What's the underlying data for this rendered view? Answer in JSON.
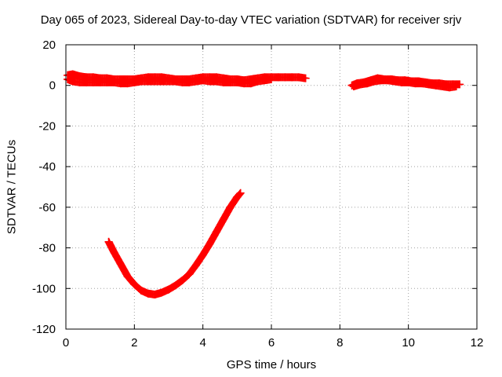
{
  "chart_data": {
    "type": "line",
    "title": "Day 065 of 2023, Sidereal Day-to-day VTEC variation (SDTVAR) for receiver srjv",
    "xlabel": "GPS time / hours",
    "ylabel": "SDTVAR / TECUs",
    "xlim": [
      0,
      12
    ],
    "ylim": [
      -120,
      20
    ],
    "xticks": [
      0,
      2,
      4,
      6,
      8,
      10,
      12
    ],
    "yticks": [
      20,
      0,
      -20,
      -40,
      -60,
      -80,
      -100,
      -120
    ],
    "grid": true,
    "legend": "none",
    "series": [
      {
        "color": "#ff0000",
        "marker": "plus",
        "x": [
          0.05,
          0.2,
          0.4,
          0.6,
          0.8,
          1.0,
          1.2,
          1.4,
          1.6,
          1.8,
          2.0,
          2.2,
          2.4,
          2.6,
          2.8,
          3.0,
          3.2,
          3.4,
          3.6,
          3.8,
          4.0,
          4.2,
          4.4,
          4.6,
          4.8,
          5.0,
          5.2,
          5.4,
          5.6,
          5.8,
          6.0,
          6.2,
          6.4,
          6.6,
          6.8,
          7.0
        ],
        "y": [
          5,
          5.5,
          4.5,
          4,
          4,
          3.5,
          3.5,
          3,
          3,
          3,
          3,
          3.5,
          4,
          4,
          4,
          3.5,
          3,
          3,
          3,
          3.5,
          4,
          4,
          4,
          3.5,
          3,
          3,
          2.5,
          3,
          3.5,
          4,
          4,
          4,
          4,
          4,
          4,
          3.5
        ]
      },
      {
        "color": "#ff0000",
        "marker": "plus",
        "x": [
          0.05,
          0.2,
          0.4,
          0.6,
          0.8,
          1.0,
          1.2,
          1.4,
          1.6,
          1.8,
          2.0,
          2.2,
          2.4,
          2.6,
          2.8,
          3.0,
          3.2,
          3.4,
          3.6,
          3.8,
          4.0,
          4.2,
          4.4,
          4.6,
          4.8,
          5.0,
          5.2,
          5.4,
          5.6,
          5.8,
          6.0
        ],
        "y": [
          3,
          2,
          1.5,
          1.5,
          1.5,
          1.5,
          1.5,
          1.5,
          1,
          1,
          1.5,
          2,
          2,
          2,
          2,
          2,
          2,
          1.5,
          1.5,
          2,
          2.5,
          2,
          2,
          1.5,
          1.5,
          1.5,
          1,
          1,
          2,
          2.5,
          3
        ]
      },
      {
        "color": "#ff0000",
        "marker": "plus",
        "x": [
          8.35,
          8.5,
          8.7,
          8.9,
          9.1,
          9.3,
          9.5,
          9.7,
          9.9,
          10.1,
          10.3,
          10.5,
          10.7,
          10.9,
          11.1,
          11.3,
          11.5
        ],
        "y": [
          0,
          1,
          1.5,
          2.5,
          3.5,
          3,
          3,
          2.5,
          2.5,
          2,
          2,
          1.5,
          1,
          1,
          0.5,
          0.5,
          0.5
        ]
      },
      {
        "color": "#ff0000",
        "marker": "plus",
        "x": [
          8.4,
          8.6,
          8.8,
          9.0,
          9.2,
          9.4,
          9.6,
          9.8,
          10.0,
          10.2,
          10.4,
          10.6,
          10.8,
          11.0,
          11.2,
          11.4
        ],
        "y": [
          -0.5,
          0.5,
          1,
          2,
          2.5,
          2.5,
          2,
          1.5,
          1.5,
          1,
          1,
          0.5,
          0,
          -0.5,
          -1,
          -0.5
        ]
      },
      {
        "color": "#ff0000",
        "marker": "plus",
        "x": [
          1.25,
          1.4,
          1.6,
          1.8,
          2.0,
          2.2,
          2.4,
          2.6,
          2.8,
          3.0,
          3.2,
          3.4,
          3.6,
          3.8,
          4.0,
          4.2,
          4.4,
          4.6,
          4.8,
          5.0,
          5.1
        ],
        "y": [
          -77,
          -82,
          -88,
          -94,
          -98,
          -101,
          -102.5,
          -103,
          -102,
          -100.5,
          -98.5,
          -96,
          -93,
          -88.5,
          -83.5,
          -78,
          -72,
          -66,
          -60,
          -55,
          -53
        ]
      }
    ]
  }
}
